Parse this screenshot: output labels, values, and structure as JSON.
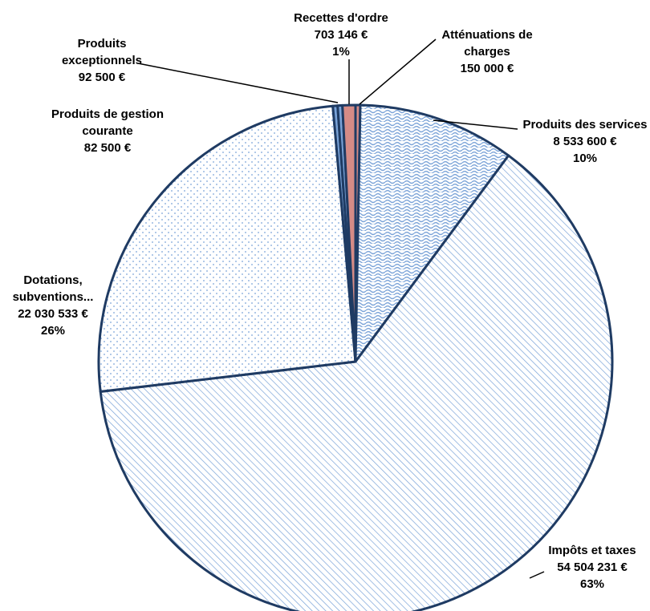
{
  "chart_data": {
    "type": "pie",
    "title": "",
    "slices": [
      {
        "category": "Atténuations de charges",
        "value": 150000,
        "value_label": "150 000 €",
        "percent_label": "",
        "label_lines": [
          "Atténuations de",
          "charges",
          "150 000 €"
        ],
        "pattern": "solid",
        "color": "#d58b86"
      },
      {
        "category": "Produits des services",
        "value": 8533600,
        "value_label": "8 533 600 €",
        "percent_label": "10%",
        "label_lines": [
          "Produits des services",
          "8 533 600 €",
          "10%"
        ],
        "pattern": "wave",
        "color": "#7aa3d8"
      },
      {
        "category": "Impôts et taxes",
        "value": 54504231,
        "value_label": "54 504 231 €",
        "percent_label": "63%",
        "label_lines": [
          "Impôts et taxes",
          "54 504 231 €",
          "63%"
        ],
        "pattern": "diagonal",
        "color": "#7aa3d8"
      },
      {
        "category": "Dotations, subventions...",
        "value": 22030533,
        "value_label": "22 030 533 €",
        "percent_label": "26%",
        "label_lines": [
          "Dotations,",
          "subventions...",
          "22 030 533 €",
          "26%"
        ],
        "pattern": "dots",
        "color": "#7aa3d8"
      },
      {
        "category": "Produits de gestion courante",
        "value": 82500,
        "value_label": "82 500 €",
        "percent_label": "",
        "label_lines": [
          "Produits de gestion",
          "courante",
          "82 500 €"
        ],
        "pattern": "solid",
        "color": "#7aa3d8"
      },
      {
        "category": "Produits exceptionnels",
        "value": 92500,
        "value_label": "92 500 €",
        "percent_label": "",
        "label_lines": [
          "Produits",
          "exceptionnels",
          "92 500 €"
        ],
        "pattern": "solid",
        "color": "#7aa3d8"
      },
      {
        "category": "Recettes d'ordre",
        "value": 703146,
        "value_label": "703 146 €",
        "percent_label": "1%",
        "label_lines": [
          "Recettes d'ordre",
          "703 146 €",
          "1%"
        ],
        "pattern": "solid",
        "color": "#d58b86"
      }
    ],
    "start_angle_deg": 0,
    "direction": "clockwise",
    "border_color": "#1f3b63",
    "legend": "none"
  }
}
